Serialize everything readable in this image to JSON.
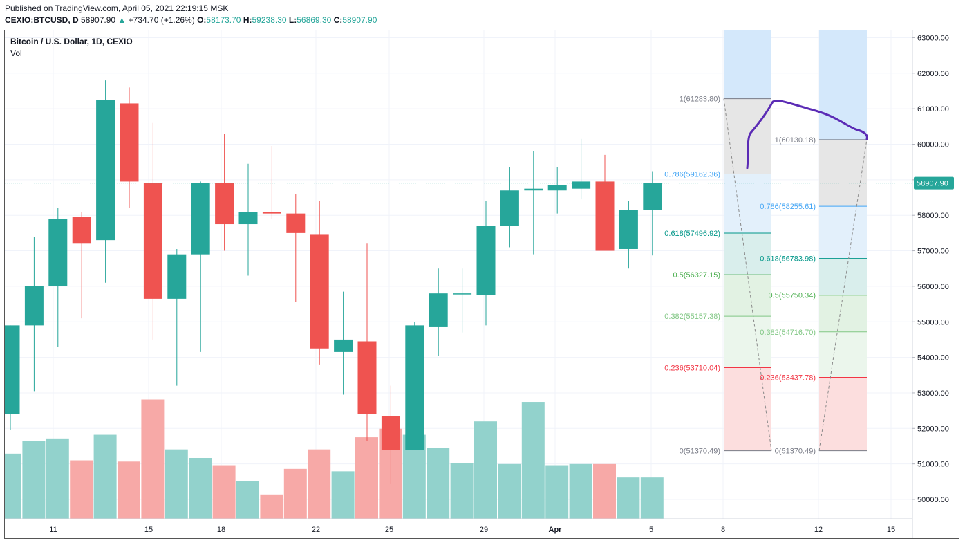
{
  "header": {
    "published": "Published on TradingView.com, April 05, 2021 22:19:15 MSK",
    "symbol": "CEXIO:BTCUSD, D",
    "last": "58907.90",
    "change": "+734.70 (+1.26%)",
    "o_label": "O:",
    "o_value": "58173.70",
    "h_label": "H:",
    "h_value": "59238.30",
    "l_label": "L:",
    "l_value": "56869.30",
    "c_label": "C:",
    "c_value": "58907.90"
  },
  "legend": {
    "title": "Bitcoin / U.S. Dollar, 1D, CEXIO",
    "volume_label": "Vol"
  },
  "colors": {
    "up": "#26a69a",
    "down": "#ef5350",
    "up_vol": "#92d2cc",
    "down_vol": "#f7a9a7",
    "drawing": "#5b2bb5",
    "price_line": "#26a69a"
  },
  "chart_data": {
    "type": "candlestick",
    "ylim": [
      49400,
      63200
    ],
    "y_ticks": [
      "63000.00",
      "62000.00",
      "61000.00",
      "60000.00",
      "59000.00",
      "58000.00",
      "57000.00",
      "56000.00",
      "55000.00",
      "54000.00",
      "53000.00",
      "52000.00",
      "51000.00",
      "50000.00"
    ],
    "last_price": "58907.90",
    "x_ticks": [
      "11",
      "15",
      "18",
      "22",
      "25",
      "29",
      "Apr",
      "5",
      "8",
      "12",
      "15"
    ],
    "candles": [
      {
        "o": 52400,
        "h": 54900,
        "l": 51950,
        "c": 54900
      },
      {
        "o": 54900,
        "h": 57400,
        "l": 53050,
        "c": 56000
      },
      {
        "o": 56000,
        "h": 58200,
        "l": 54300,
        "c": 57900
      },
      {
        "o": 57950,
        "h": 58100,
        "l": 55100,
        "c": 57200
      },
      {
        "o": 57300,
        "h": 61800,
        "l": 56100,
        "c": 61250
      },
      {
        "o": 61150,
        "h": 61600,
        "l": 58200,
        "c": 58950
      },
      {
        "o": 58900,
        "h": 60600,
        "l": 54500,
        "c": 55650
      },
      {
        "o": 55650,
        "h": 57050,
        "l": 53200,
        "c": 56900
      },
      {
        "o": 56900,
        "h": 58950,
        "l": 54150,
        "c": 58900
      },
      {
        "o": 58900,
        "h": 60300,
        "l": 57000,
        "c": 57750
      },
      {
        "o": 57750,
        "h": 59450,
        "l": 56300,
        "c": 58100
      },
      {
        "o": 58100,
        "h": 59950,
        "l": 57900,
        "c": 58050
      },
      {
        "o": 58050,
        "h": 58600,
        "l": 55550,
        "c": 57500
      },
      {
        "o": 57450,
        "h": 58400,
        "l": 53800,
        "c": 54250
      },
      {
        "o": 54150,
        "h": 55850,
        "l": 52950,
        "c": 54500
      },
      {
        "o": 54450,
        "h": 57200,
        "l": 51650,
        "c": 52400
      },
      {
        "o": 52350,
        "h": 53200,
        "l": 50450,
        "c": 51400
      },
      {
        "o": 51400,
        "h": 55000,
        "l": 51400,
        "c": 54900
      },
      {
        "o": 54850,
        "h": 56500,
        "l": 54050,
        "c": 55800
      },
      {
        "o": 55800,
        "h": 56500,
        "l": 54700,
        "c": 55800
      },
      {
        "o": 55750,
        "h": 58400,
        "l": 54900,
        "c": 57700
      },
      {
        "o": 57700,
        "h": 59350,
        "l": 57100,
        "c": 58700
      },
      {
        "o": 58700,
        "h": 59800,
        "l": 56900,
        "c": 58750
      },
      {
        "o": 58700,
        "h": 59350,
        "l": 58050,
        "c": 58850
      },
      {
        "o": 58750,
        "h": 60150,
        "l": 58450,
        "c": 58950
      },
      {
        "o": 58950,
        "h": 59700,
        "l": 57000,
        "c": 57000
      },
      {
        "o": 57050,
        "h": 58400,
        "l": 56500,
        "c": 58150
      },
      {
        "o": 58150,
        "h": 59240,
        "l": 56870,
        "c": 58900
      }
    ],
    "volume_rel": [
      0.535,
      0.64,
      0.66,
      0.48,
      0.69,
      0.47,
      0.98,
      0.57,
      0.5,
      0.44,
      0.31,
      0.2,
      0.41,
      0.57,
      0.39,
      0.67,
      0.74,
      0.69,
      0.58,
      0.46,
      0.8,
      0.45,
      0.96,
      0.44,
      0.45,
      0.45,
      0.34,
      0.34
    ],
    "fib_left": {
      "levels": [
        {
          "label": "1(61283.80)",
          "value": 61283.8,
          "color": "#787b86",
          "fill": "#e6e6e6"
        },
        {
          "label": "0.786(59162.36)",
          "value": 59162.36,
          "color": "#42a5f5",
          "fill": "#e3f0fb"
        },
        {
          "label": "0.618(57496.92)",
          "value": 57496.92,
          "color": "#009688",
          "fill": "#d9eeec"
        },
        {
          "label": "0.5(56327.15)",
          "value": 56327.15,
          "color": "#4caf50",
          "fill": "#e2f2e3"
        },
        {
          "label": "0.382(55157.38)",
          "value": 55157.38,
          "color": "#81c784",
          "fill": "#ebf6ec"
        },
        {
          "label": "0.236(53710.04)",
          "value": 53710.04,
          "color": "#f23645",
          "fill": "#fcdede"
        },
        {
          "label": "0(51370.49)",
          "value": 51370.49,
          "color": "#787b86",
          "fill": null
        }
      ]
    },
    "fib_right": {
      "levels": [
        {
          "label": "1(60130.18)",
          "value": 60130.18,
          "color": "#787b86",
          "fill": "#e6e6e6"
        },
        {
          "label": "0.786(58255.61)",
          "value": 58255.61,
          "color": "#42a5f5",
          "fill": "#e3f0fb"
        },
        {
          "label": "0.618(56783.98)",
          "value": 56783.98,
          "color": "#009688",
          "fill": "#d9eeec"
        },
        {
          "label": "0.5(55750.34)",
          "value": 55750.34,
          "color": "#4caf50",
          "fill": "#e2f2e3"
        },
        {
          "label": "0.382(54716.70)",
          "value": 54716.7,
          "color": "#81c784",
          "fill": "#ebf6ec"
        },
        {
          "label": "0.236(53437.78)",
          "value": 53437.78,
          "color": "#f23645",
          "fill": "#fcdede"
        },
        {
          "label": "0(51370.49)",
          "value": 51370.49,
          "color": "#787b86",
          "fill": null
        }
      ]
    }
  }
}
